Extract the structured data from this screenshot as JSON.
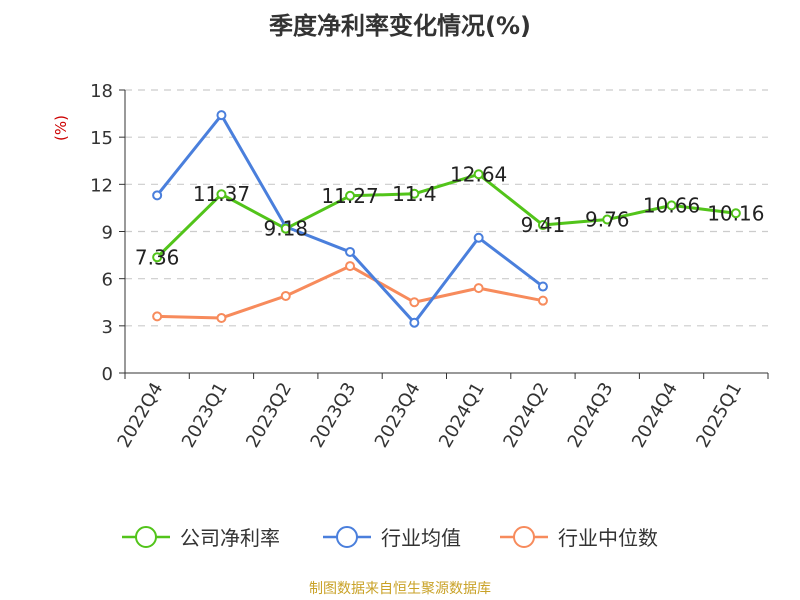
{
  "chart_data": {
    "type": "line",
    "title": "季度净利率变化情况(%)",
    "ylabel": "(%)",
    "ylim": [
      0,
      18
    ],
    "yticks": [
      0,
      3,
      6,
      9,
      12,
      15,
      18
    ],
    "grid": "horizontal dashed",
    "legend_position": "bottom",
    "categories": [
      "2022Q4",
      "2023Q1",
      "2023Q2",
      "2023Q3",
      "2023Q4",
      "2024Q1",
      "2024Q2",
      "2024Q3",
      "2024Q4",
      "2025Q1"
    ],
    "series": [
      {
        "name": "公司净利率",
        "color": "#52c41a",
        "values": [
          7.36,
          11.37,
          9.18,
          11.27,
          11.4,
          12.64,
          9.41,
          9.76,
          10.66,
          10.16
        ],
        "labels": [
          "7.36",
          "11.37",
          "9.18",
          "11.27",
          "11.4",
          "12.64",
          "9.41",
          "9.76",
          "10.66",
          "10.16"
        ]
      },
      {
        "name": "行业均值",
        "color": "#4a7fdc",
        "values": [
          11.3,
          16.4,
          9.3,
          7.7,
          3.2,
          8.6,
          5.5,
          null,
          null,
          null
        ]
      },
      {
        "name": "行业中位数",
        "color": "#f78b5c",
        "values": [
          3.6,
          3.5,
          4.9,
          6.8,
          4.5,
          5.4,
          4.6,
          null,
          null,
          null
        ]
      }
    ]
  },
  "source": "制图数据来自恒生聚源数据库"
}
